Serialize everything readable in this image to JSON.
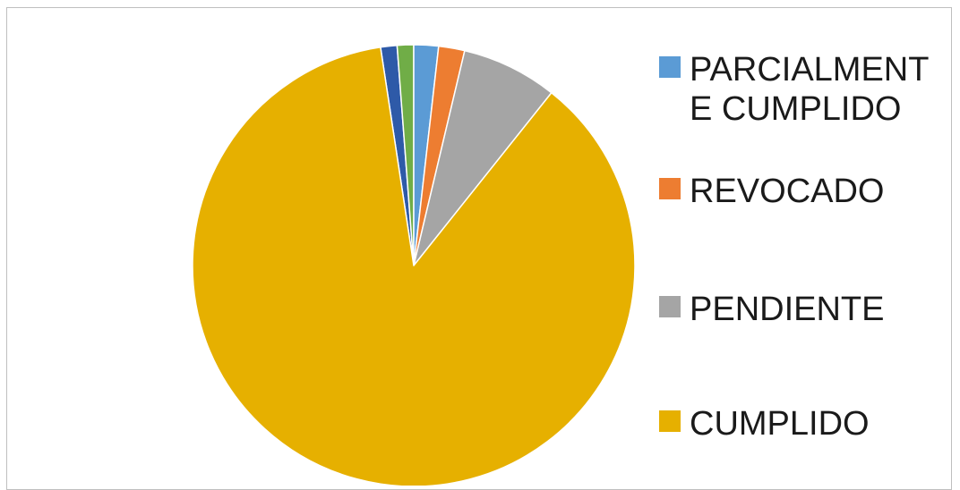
{
  "chart_data": {
    "type": "pie",
    "title": "",
    "categories": [
      "PARCIALMENTE CUMPLIDO",
      "REVOCADO",
      "PENDIENTE",
      "CUMPLIDO"
    ],
    "slices": [
      {
        "label": "",
        "value": 1.2,
        "color": "#2e5aa8",
        "in_legend": false
      },
      {
        "label": "",
        "value": 1.2,
        "color": "#70ad47",
        "in_legend": false
      },
      {
        "label": "PARCIALMENTE CUMPLIDO",
        "value": 1.8,
        "color": "#5b9bd5",
        "in_legend": true
      },
      {
        "label": "REVOCADO",
        "value": 1.9,
        "color": "#ed7d31",
        "in_legend": true
      },
      {
        "label": "PENDIENTE",
        "value": 7.0,
        "color": "#a5a5a5",
        "in_legend": true
      },
      {
        "label": "CUMPLIDO",
        "value": 86.9,
        "color": "#e6b000",
        "in_legend": true
      }
    ],
    "legend": {
      "placement": "right",
      "entries": [
        {
          "label": "PARCIALMENTE CUMPLIDO",
          "color": "#5b9bd5"
        },
        {
          "label": "REVOCADO",
          "color": "#ed7d31"
        },
        {
          "label": "PENDIENTE",
          "color": "#a5a5a5"
        },
        {
          "label": "CUMPLIDO",
          "color": "#e6b000"
        }
      ]
    }
  }
}
